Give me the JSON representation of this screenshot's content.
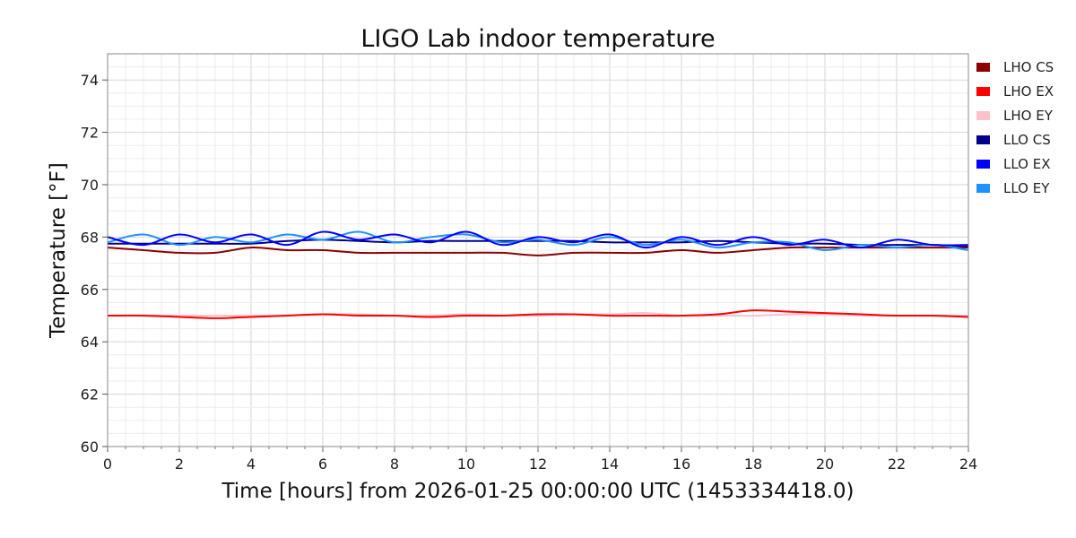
{
  "chart_data": {
    "type": "line",
    "title": "LIGO Lab indoor temperature",
    "xlabel": "Time [hours] from 2026-01-25 00:00:00 UTC (1453334418.0)",
    "ylabel": "Temperature [°F]",
    "xlim": [
      0,
      24
    ],
    "ylim": [
      60,
      75
    ],
    "xticks": [
      0,
      2,
      4,
      6,
      8,
      10,
      12,
      14,
      16,
      18,
      20,
      22,
      24
    ],
    "yticks": [
      60,
      62,
      64,
      66,
      68,
      70,
      72,
      74
    ],
    "grid": true,
    "legend_position": "outside-right",
    "x": [
      0,
      1,
      2,
      3,
      4,
      5,
      6,
      7,
      8,
      9,
      10,
      11,
      12,
      13,
      14,
      15,
      16,
      17,
      18,
      19,
      20,
      21,
      22,
      23,
      24
    ],
    "series": [
      {
        "name": "LHO CS",
        "color": "#8b0000",
        "values": [
          67.6,
          67.5,
          67.4,
          67.4,
          67.6,
          67.5,
          67.5,
          67.4,
          67.4,
          67.4,
          67.4,
          67.4,
          67.3,
          67.4,
          67.4,
          67.4,
          67.5,
          67.4,
          67.5,
          67.6,
          67.6,
          67.6,
          67.6,
          67.6,
          67.6
        ]
      },
      {
        "name": "LHO EX",
        "color": "#ff0000",
        "values": [
          65.0,
          65.0,
          64.95,
          64.9,
          64.95,
          65.0,
          65.05,
          65.0,
          65.0,
          64.95,
          65.0,
          65.0,
          65.05,
          65.05,
          65.0,
          65.0,
          65.0,
          65.05,
          65.2,
          65.15,
          65.1,
          65.05,
          65.0,
          65.0,
          64.95
        ]
      },
      {
        "name": "LHO EY",
        "color": "#ffc0cb",
        "values": [
          65.0,
          65.0,
          65.0,
          65.0,
          65.0,
          65.0,
          65.05,
          65.05,
          65.0,
          65.0,
          65.05,
          65.0,
          65.0,
          65.05,
          65.05,
          65.1,
          65.0,
          65.0,
          65.0,
          65.05,
          65.05,
          65.0,
          65.0,
          65.0,
          65.0
        ]
      },
      {
        "name": "LLO CS",
        "color": "#00008b",
        "values": [
          67.75,
          67.75,
          67.75,
          67.75,
          67.75,
          67.85,
          67.9,
          67.85,
          67.8,
          67.85,
          67.85,
          67.85,
          67.85,
          67.85,
          67.8,
          67.8,
          67.8,
          67.85,
          67.8,
          67.75,
          67.75,
          67.7,
          67.7,
          67.7,
          67.65
        ]
      },
      {
        "name": "LLO EX",
        "color": "#0000ff",
        "values": [
          68.0,
          67.7,
          68.1,
          67.8,
          68.1,
          67.7,
          68.2,
          67.9,
          68.1,
          67.8,
          68.2,
          67.7,
          68.0,
          67.8,
          68.1,
          67.6,
          68.0,
          67.7,
          68.0,
          67.7,
          67.9,
          67.6,
          67.9,
          67.7,
          67.7
        ]
      },
      {
        "name": "LLO EY",
        "color": "#1e90ff",
        "values": [
          67.8,
          68.1,
          67.7,
          68.0,
          67.8,
          68.1,
          67.9,
          68.2,
          67.8,
          68.0,
          68.1,
          67.8,
          67.9,
          67.7,
          68.0,
          67.7,
          67.9,
          67.6,
          67.8,
          67.8,
          67.5,
          67.7,
          67.6,
          67.7,
          67.5
        ]
      }
    ]
  }
}
